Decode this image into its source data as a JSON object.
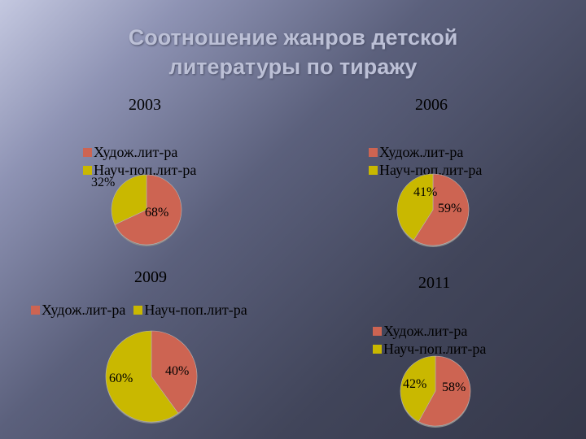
{
  "title_line1": "Соотношение жанров детской",
  "title_line2": "литературы по тиражу",
  "legend_fiction": "Худож.лит-ра",
  "legend_science": "Науч-поп.лит-ра",
  "colors": {
    "fiction": "#cd6452",
    "science": "#c9b800",
    "edge": "#8a8a8a"
  },
  "chart_data": [
    {
      "type": "pie",
      "title": "2003",
      "labels": [
        "Худож.лит-ра",
        "Науч-поп.лит-ра"
      ],
      "values": [
        68,
        32
      ],
      "value_labels": [
        "68%",
        "32%"
      ]
    },
    {
      "type": "pie",
      "title": "2006",
      "labels": [
        "Худож.лит-ра",
        "Науч-поп.лит-ра"
      ],
      "values": [
        59,
        41
      ],
      "value_labels": [
        "59%",
        "41%"
      ]
    },
    {
      "type": "pie",
      "title": "2009",
      "labels": [
        "Худож.лит-ра",
        "Науч-поп.лит-ра"
      ],
      "values": [
        40,
        60
      ],
      "value_labels": [
        "40%",
        "60%"
      ]
    },
    {
      "type": "pie",
      "title": "2011",
      "labels": [
        "Худож.лит-ра",
        "Науч-поп.лит-ра"
      ],
      "values": [
        58,
        42
      ],
      "value_labels": [
        "58%",
        "42%"
      ]
    }
  ]
}
